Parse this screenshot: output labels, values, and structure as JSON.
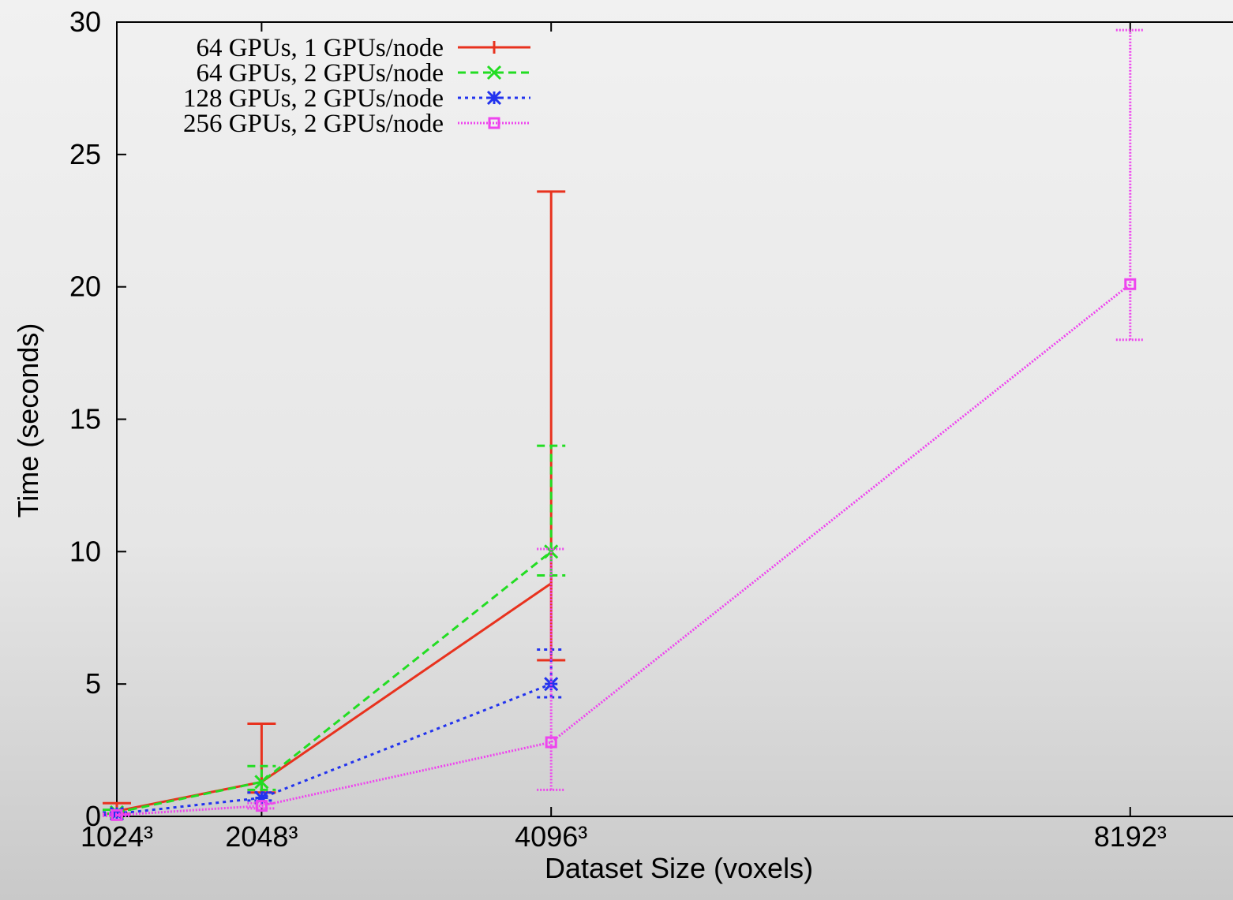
{
  "chart_data": {
    "type": "line",
    "x_label": "Dataset Size (voxels)",
    "y_label": "Time (seconds)",
    "x": [
      1024,
      2048,
      4096,
      8192
    ],
    "xlim": [
      1024,
      8919
    ],
    "xticks": [
      {
        "value": 1024,
        "label": "1024³"
      },
      {
        "value": 2048,
        "label": "2048³"
      },
      {
        "value": 4096,
        "label": "4096³"
      },
      {
        "value": 8192,
        "label": "8192³"
      }
    ],
    "ylim": [
      0,
      30
    ],
    "yticks": [
      0,
      5,
      10,
      15,
      20,
      25,
      30
    ],
    "legend": "top-left",
    "series": [
      {
        "name": "64 GPUs, 1 GPUs/node",
        "color": "#e8321e",
        "values": [
          0.2,
          1.3,
          8.8,
          null
        ],
        "low": [
          0.1,
          0.9,
          5.9,
          null
        ],
        "high": [
          0.5,
          3.5,
          23.6,
          null
        ]
      },
      {
        "name": "64 GPUs, 2 GPUs/node",
        "color": "#22dd22",
        "values": [
          0.15,
          1.3,
          10.0,
          null
        ],
        "low": [
          0.1,
          1.0,
          9.1,
          null
        ],
        "high": [
          0.25,
          1.9,
          14.0,
          null
        ]
      },
      {
        "name": "128 GPUs, 2 GPUs/node",
        "color": "#2233ee",
        "values": [
          0.1,
          0.7,
          5.0,
          null
        ],
        "low": [
          0.05,
          0.6,
          4.5,
          null
        ],
        "high": [
          0.15,
          0.9,
          6.3,
          null
        ]
      },
      {
        "name": "256 GPUs, 2 GPUs/node",
        "color": "#ee44ee",
        "values": [
          0.05,
          0.4,
          2.8,
          20.1
        ],
        "low": [
          0.02,
          0.3,
          1.0,
          18.0
        ],
        "high": [
          0.1,
          0.5,
          10.1,
          29.7
        ]
      }
    ]
  }
}
